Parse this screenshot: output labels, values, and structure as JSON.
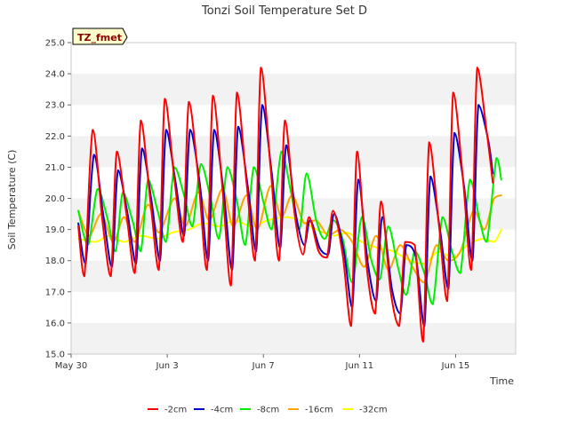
{
  "chart_data": {
    "type": "line",
    "title": "Tonzi Soil Temperature Set D",
    "xlabel": "Time",
    "ylabel": "Soil Temperature (C)",
    "ylim": [
      15.0,
      25.0
    ],
    "xlim_days": [
      0,
      18.5
    ],
    "y_ticks": [
      "15.0",
      "16.0",
      "17.0",
      "18.0",
      "19.0",
      "20.0",
      "21.0",
      "22.0",
      "23.0",
      "24.0",
      "25.0"
    ],
    "x_ticks": [
      {
        "label": "May 30",
        "day": 0
      },
      {
        "label": "Jun 3",
        "day": 4
      },
      {
        "label": "Jun 7",
        "day": 8
      },
      {
        "label": "Jun 11",
        "day": 12
      },
      {
        "label": "Jun 15",
        "day": 16
      }
    ],
    "badge": "TZ_fmet",
    "grid": "horizontal bands",
    "legend_position": "bottom",
    "series": [
      {
        "name": "-2cm",
        "color": "#ff0000",
        "points": [
          [
            0.3,
            19.1
          ],
          [
            0.55,
            17.5
          ],
          [
            0.9,
            22.2
          ],
          [
            1.3,
            19.3
          ],
          [
            1.65,
            17.5
          ],
          [
            1.9,
            21.5
          ],
          [
            2.3,
            19.5
          ],
          [
            2.65,
            17.6
          ],
          [
            2.9,
            22.5
          ],
          [
            3.3,
            19.9
          ],
          [
            3.65,
            17.7
          ],
          [
            3.9,
            23.2
          ],
          [
            4.3,
            20.6
          ],
          [
            4.65,
            18.6
          ],
          [
            4.9,
            23.1
          ],
          [
            5.3,
            20.6
          ],
          [
            5.65,
            17.7
          ],
          [
            5.9,
            23.3
          ],
          [
            6.3,
            20.3
          ],
          [
            6.65,
            17.2
          ],
          [
            6.9,
            23.4
          ],
          [
            7.3,
            20.5
          ],
          [
            7.65,
            18.0
          ],
          [
            7.9,
            24.2
          ],
          [
            8.3,
            21.0
          ],
          [
            8.65,
            18.0
          ],
          [
            8.9,
            22.5
          ],
          [
            9.3,
            19.5
          ],
          [
            9.65,
            18.2
          ],
          [
            9.9,
            19.4
          ],
          [
            10.3,
            18.3
          ],
          [
            10.65,
            18.1
          ],
          [
            10.9,
            19.6
          ],
          [
            11.3,
            18.2
          ],
          [
            11.65,
            15.9
          ],
          [
            11.9,
            21.5
          ],
          [
            12.3,
            17.8
          ],
          [
            12.65,
            16.3
          ],
          [
            12.9,
            19.9
          ],
          [
            13.3,
            17.0
          ],
          [
            13.65,
            15.9
          ],
          [
            13.9,
            18.6
          ],
          [
            14.3,
            18.5
          ],
          [
            14.65,
            15.4
          ],
          [
            14.9,
            21.8
          ],
          [
            15.3,
            19.2
          ],
          [
            15.65,
            16.7
          ],
          [
            15.9,
            23.4
          ],
          [
            16.3,
            20.7
          ],
          [
            16.65,
            17.7
          ],
          [
            16.9,
            24.2
          ],
          [
            17.3,
            22.1
          ],
          [
            17.55,
            20.5
          ]
        ]
      },
      {
        "name": "-4cm",
        "color": "#0000cc",
        "points": [
          [
            0.3,
            19.2
          ],
          [
            0.6,
            17.9
          ],
          [
            0.95,
            21.4
          ],
          [
            1.35,
            19.4
          ],
          [
            1.7,
            17.8
          ],
          [
            1.95,
            20.9
          ],
          [
            2.35,
            19.5
          ],
          [
            2.7,
            17.9
          ],
          [
            2.95,
            21.6
          ],
          [
            3.35,
            19.9
          ],
          [
            3.7,
            18.0
          ],
          [
            3.95,
            22.2
          ],
          [
            4.35,
            20.5
          ],
          [
            4.7,
            18.8
          ],
          [
            4.95,
            22.2
          ],
          [
            5.35,
            20.5
          ],
          [
            5.7,
            18.0
          ],
          [
            5.95,
            22.2
          ],
          [
            6.35,
            20.2
          ],
          [
            6.7,
            17.7
          ],
          [
            6.95,
            22.3
          ],
          [
            7.35,
            20.4
          ],
          [
            7.7,
            18.3
          ],
          [
            7.95,
            23.0
          ],
          [
            8.35,
            20.8
          ],
          [
            8.7,
            18.4
          ],
          [
            8.95,
            21.7
          ],
          [
            9.35,
            19.5
          ],
          [
            9.7,
            18.5
          ],
          [
            9.95,
            19.3
          ],
          [
            10.35,
            18.4
          ],
          [
            10.7,
            18.2
          ],
          [
            10.95,
            19.5
          ],
          [
            11.35,
            18.3
          ],
          [
            11.7,
            16.5
          ],
          [
            11.95,
            20.6
          ],
          [
            12.35,
            17.9
          ],
          [
            12.7,
            16.7
          ],
          [
            12.95,
            19.4
          ],
          [
            13.35,
            17.1
          ],
          [
            13.7,
            16.3
          ],
          [
            13.95,
            18.5
          ],
          [
            14.35,
            18.1
          ],
          [
            14.7,
            15.9
          ],
          [
            14.95,
            20.7
          ],
          [
            15.35,
            19.0
          ],
          [
            15.7,
            17.1
          ],
          [
            15.95,
            22.1
          ],
          [
            16.35,
            20.4
          ],
          [
            16.7,
            18.0
          ],
          [
            16.95,
            23.0
          ],
          [
            17.35,
            21.9
          ],
          [
            17.55,
            20.8
          ]
        ]
      },
      {
        "name": "-8cm",
        "color": "#00ee00",
        "points": [
          [
            0.3,
            19.6
          ],
          [
            0.7,
            18.5
          ],
          [
            1.1,
            20.3
          ],
          [
            1.5,
            19.4
          ],
          [
            1.85,
            18.3
          ],
          [
            2.15,
            20.2
          ],
          [
            2.55,
            19.3
          ],
          [
            2.9,
            18.3
          ],
          [
            3.2,
            20.6
          ],
          [
            3.6,
            19.6
          ],
          [
            3.95,
            18.6
          ],
          [
            4.3,
            21.0
          ],
          [
            4.7,
            20.1
          ],
          [
            5.05,
            19.1
          ],
          [
            5.4,
            21.1
          ],
          [
            5.8,
            20.0
          ],
          [
            6.15,
            18.7
          ],
          [
            6.5,
            21.0
          ],
          [
            6.9,
            19.9
          ],
          [
            7.25,
            18.5
          ],
          [
            7.6,
            21.0
          ],
          [
            8.0,
            19.9
          ],
          [
            8.35,
            19.0
          ],
          [
            8.75,
            21.5
          ],
          [
            9.15,
            20.2
          ],
          [
            9.5,
            19.0
          ],
          [
            9.8,
            20.8
          ],
          [
            10.2,
            19.3
          ],
          [
            10.55,
            18.7
          ],
          [
            10.9,
            19.3
          ],
          [
            11.3,
            18.7
          ],
          [
            11.7,
            17.3
          ],
          [
            12.1,
            19.4
          ],
          [
            12.5,
            18.0
          ],
          [
            12.85,
            17.4
          ],
          [
            13.2,
            19.1
          ],
          [
            13.6,
            17.8
          ],
          [
            13.95,
            16.9
          ],
          [
            14.3,
            18.3
          ],
          [
            14.7,
            17.6
          ],
          [
            15.05,
            16.6
          ],
          [
            15.45,
            19.4
          ],
          [
            15.85,
            18.3
          ],
          [
            16.2,
            17.6
          ],
          [
            16.6,
            20.6
          ],
          [
            17.0,
            19.3
          ],
          [
            17.3,
            18.6
          ],
          [
            17.7,
            21.3
          ],
          [
            17.9,
            20.6
          ]
        ]
      },
      {
        "name": "-16cm",
        "color": "#ffa500",
        "points": [
          [
            0.3,
            19.6
          ],
          [
            0.75,
            18.8
          ],
          [
            1.25,
            19.5
          ],
          [
            1.75,
            18.6
          ],
          [
            2.2,
            19.4
          ],
          [
            2.65,
            18.6
          ],
          [
            3.2,
            19.8
          ],
          [
            3.65,
            18.9
          ],
          [
            4.3,
            20.0
          ],
          [
            4.75,
            19.1
          ],
          [
            5.3,
            20.2
          ],
          [
            5.75,
            19.3
          ],
          [
            6.3,
            20.3
          ],
          [
            6.75,
            19.1
          ],
          [
            7.3,
            20.1
          ],
          [
            7.75,
            19.0
          ],
          [
            8.3,
            20.4
          ],
          [
            8.75,
            19.4
          ],
          [
            9.2,
            20.1
          ],
          [
            9.7,
            19.2
          ],
          [
            10.2,
            19.3
          ],
          [
            10.7,
            18.8
          ],
          [
            11.2,
            19.0
          ],
          [
            11.7,
            18.6
          ],
          [
            12.2,
            17.8
          ],
          [
            12.7,
            18.8
          ],
          [
            13.2,
            17.7
          ],
          [
            13.7,
            18.5
          ],
          [
            14.2,
            17.8
          ],
          [
            14.7,
            17.3
          ],
          [
            15.2,
            18.5
          ],
          [
            15.7,
            18.0
          ],
          [
            16.2,
            18.3
          ],
          [
            16.75,
            19.6
          ],
          [
            17.2,
            19.0
          ],
          [
            17.6,
            20.0
          ],
          [
            17.9,
            20.1
          ]
        ]
      },
      {
        "name": "-32cm",
        "color": "#ffff00",
        "points": [
          [
            0.3,
            18.7
          ],
          [
            1.0,
            18.6
          ],
          [
            1.6,
            18.8
          ],
          [
            2.2,
            18.6
          ],
          [
            2.9,
            18.8
          ],
          [
            3.6,
            18.7
          ],
          [
            4.2,
            18.9
          ],
          [
            4.9,
            19.0
          ],
          [
            5.5,
            19.2
          ],
          [
            6.2,
            19.1
          ],
          [
            6.8,
            19.3
          ],
          [
            7.5,
            19.1
          ],
          [
            8.2,
            19.3
          ],
          [
            8.9,
            19.4
          ],
          [
            9.5,
            19.3
          ],
          [
            10.2,
            19.0
          ],
          [
            10.9,
            18.8
          ],
          [
            11.5,
            18.9
          ],
          [
            12.1,
            18.6
          ],
          [
            12.8,
            18.4
          ],
          [
            13.4,
            18.3
          ],
          [
            14.1,
            18.0
          ],
          [
            14.7,
            17.9
          ],
          [
            15.3,
            18.3
          ],
          [
            15.9,
            18.1
          ],
          [
            16.5,
            18.5
          ],
          [
            17.1,
            18.7
          ],
          [
            17.6,
            18.6
          ],
          [
            17.9,
            19.0
          ]
        ]
      }
    ]
  }
}
